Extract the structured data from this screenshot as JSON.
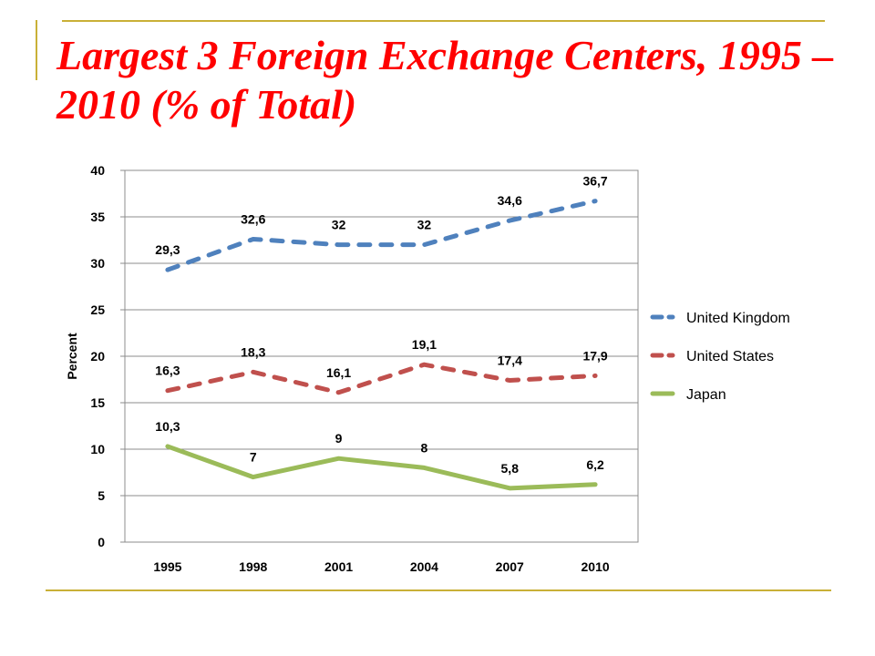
{
  "slide": {
    "title": "Largest 3 Foreign Exchange Centers, 1995 – 2010 (% of Total)"
  },
  "chart_data": {
    "type": "line",
    "title": "",
    "xlabel": "",
    "ylabel": "Percent",
    "x": [
      "1995",
      "1998",
      "2001",
      "2004",
      "2007",
      "2010"
    ],
    "ylim": [
      0,
      40
    ],
    "yticks": [
      0,
      5,
      10,
      15,
      20,
      25,
      30,
      35,
      40
    ],
    "grid": true,
    "legend_position": "right",
    "series": [
      {
        "name": "United Kingdom",
        "values": [
          29.3,
          32.6,
          32,
          32,
          34.6,
          36.7
        ],
        "labels": [
          "29,3",
          "32,6",
          "32",
          "32",
          "34,6",
          "36,7"
        ],
        "color": "#4f81bd",
        "style": "dashed"
      },
      {
        "name": "United States",
        "values": [
          16.3,
          18.3,
          16.1,
          19.1,
          17.4,
          17.9
        ],
        "labels": [
          "16,3",
          "18,3",
          "16,1",
          "19,1",
          "17,4",
          "17,9"
        ],
        "color": "#c0504d",
        "style": "dashed"
      },
      {
        "name": "Japan",
        "values": [
          10.3,
          7,
          9,
          8,
          5.8,
          6.2
        ],
        "labels": [
          "10,3",
          "7",
          "9",
          "8",
          "5,8",
          "6,2"
        ],
        "color": "#9bbb59",
        "style": "solid"
      }
    ]
  }
}
